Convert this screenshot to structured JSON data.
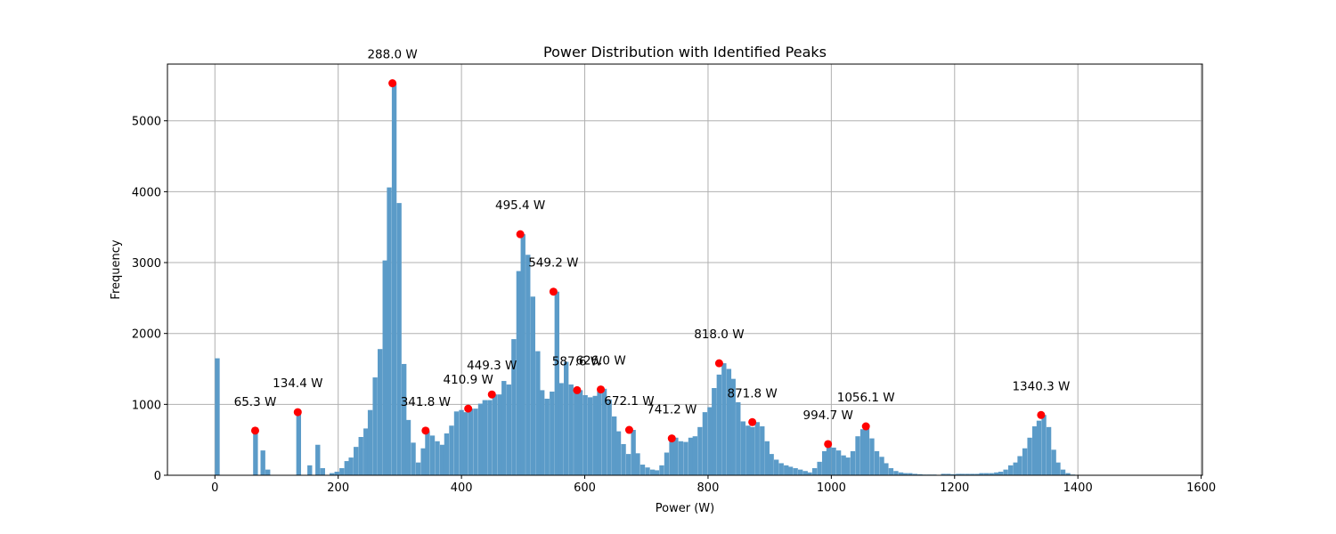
{
  "chart_data": {
    "type": "bar",
    "title": "Power Distribution with Identified Peaks",
    "xlabel": "Power (W)",
    "ylabel": "Frequency",
    "xlim": [
      -77,
      1602
    ],
    "ylim": [
      0,
      5800
    ],
    "xticks": [
      0,
      200,
      400,
      600,
      800,
      1000,
      1200,
      1400,
      1600
    ],
    "yticks": [
      0,
      1000,
      2000,
      3000,
      4000,
      5000
    ],
    "grid": true,
    "bin_width": 7.75,
    "bar_color": "#5b9bc8",
    "peak_color": "#ff0000",
    "bins": [
      [
        0,
        1650
      ],
      [
        62,
        620
      ],
      [
        74,
        350
      ],
      [
        82,
        80
      ],
      [
        132,
        900
      ],
      [
        150,
        140
      ],
      [
        163,
        430
      ],
      [
        171,
        100
      ],
      [
        186,
        30
      ],
      [
        194,
        50
      ],
      [
        202,
        100
      ],
      [
        210,
        200
      ],
      [
        217,
        250
      ],
      [
        225,
        400
      ],
      [
        233,
        540
      ],
      [
        241,
        660
      ],
      [
        248,
        920
      ],
      [
        256,
        1380
      ],
      [
        264,
        1780
      ],
      [
        272,
        3030
      ],
      [
        279,
        4060
      ],
      [
        287,
        5530
      ],
      [
        295,
        3840
      ],
      [
        303,
        1570
      ],
      [
        310,
        780
      ],
      [
        318,
        460
      ],
      [
        326,
        180
      ],
      [
        334,
        380
      ],
      [
        341,
        620
      ],
      [
        349,
        560
      ],
      [
        357,
        480
      ],
      [
        365,
        430
      ],
      [
        372,
        590
      ],
      [
        380,
        700
      ],
      [
        388,
        900
      ],
      [
        396,
        920
      ],
      [
        403,
        890
      ],
      [
        411,
        940
      ],
      [
        419,
        940
      ],
      [
        427,
        1010
      ],
      [
        434,
        1060
      ],
      [
        442,
        1060
      ],
      [
        450,
        1140
      ],
      [
        458,
        1140
      ],
      [
        465,
        1330
      ],
      [
        473,
        1280
      ],
      [
        481,
        1920
      ],
      [
        489,
        2880
      ],
      [
        496,
        3400
      ],
      [
        504,
        3110
      ],
      [
        512,
        2520
      ],
      [
        520,
        1750
      ],
      [
        527,
        1200
      ],
      [
        535,
        1080
      ],
      [
        543,
        1180
      ],
      [
        551,
        2590
      ],
      [
        558,
        1300
      ],
      [
        566,
        1600
      ],
      [
        574,
        1280
      ],
      [
        582,
        1180
      ],
      [
        589,
        1200
      ],
      [
        597,
        1130
      ],
      [
        605,
        1100
      ],
      [
        613,
        1120
      ],
      [
        620,
        1180
      ],
      [
        628,
        1220
      ],
      [
        636,
        1070
      ],
      [
        644,
        830
      ],
      [
        651,
        620
      ],
      [
        659,
        440
      ],
      [
        667,
        300
      ],
      [
        675,
        640
      ],
      [
        682,
        310
      ],
      [
        690,
        150
      ],
      [
        698,
        110
      ],
      [
        706,
        80
      ],
      [
        713,
        70
      ],
      [
        721,
        140
      ],
      [
        729,
        320
      ],
      [
        737,
        500
      ],
      [
        744,
        530
      ],
      [
        752,
        480
      ],
      [
        760,
        470
      ],
      [
        768,
        530
      ],
      [
        775,
        550
      ],
      [
        783,
        680
      ],
      [
        791,
        890
      ],
      [
        799,
        960
      ],
      [
        806,
        1230
      ],
      [
        814,
        1420
      ],
      [
        822,
        1580
      ],
      [
        830,
        1500
      ],
      [
        837,
        1360
      ],
      [
        845,
        1030
      ],
      [
        853,
        760
      ],
      [
        861,
        700
      ],
      [
        868,
        680
      ],
      [
        876,
        750
      ],
      [
        884,
        690
      ],
      [
        892,
        480
      ],
      [
        899,
        300
      ],
      [
        907,
        220
      ],
      [
        915,
        170
      ],
      [
        923,
        140
      ],
      [
        930,
        120
      ],
      [
        938,
        100
      ],
      [
        946,
        80
      ],
      [
        954,
        60
      ],
      [
        961,
        40
      ],
      [
        969,
        100
      ],
      [
        977,
        190
      ],
      [
        985,
        340
      ],
      [
        992,
        440
      ],
      [
        1000,
        390
      ],
      [
        1008,
        350
      ],
      [
        1016,
        280
      ],
      [
        1023,
        250
      ],
      [
        1031,
        340
      ],
      [
        1039,
        550
      ],
      [
        1047,
        650
      ],
      [
        1054,
        690
      ],
      [
        1062,
        520
      ],
      [
        1070,
        340
      ],
      [
        1078,
        260
      ],
      [
        1085,
        170
      ],
      [
        1093,
        100
      ],
      [
        1101,
        60
      ],
      [
        1109,
        40
      ],
      [
        1116,
        30
      ],
      [
        1124,
        30
      ],
      [
        1132,
        20
      ],
      [
        1140,
        15
      ],
      [
        1147,
        10
      ],
      [
        1155,
        10
      ],
      [
        1163,
        10
      ],
      [
        1171,
        5
      ],
      [
        1178,
        20
      ],
      [
        1186,
        20
      ],
      [
        1194,
        15
      ],
      [
        1202,
        20
      ],
      [
        1209,
        20
      ],
      [
        1217,
        20
      ],
      [
        1225,
        20
      ],
      [
        1233,
        20
      ],
      [
        1240,
        30
      ],
      [
        1248,
        30
      ],
      [
        1256,
        30
      ],
      [
        1264,
        40
      ],
      [
        1271,
        50
      ],
      [
        1279,
        80
      ],
      [
        1287,
        140
      ],
      [
        1295,
        180
      ],
      [
        1302,
        270
      ],
      [
        1310,
        380
      ],
      [
        1318,
        530
      ],
      [
        1326,
        690
      ],
      [
        1333,
        770
      ],
      [
        1341,
        850
      ],
      [
        1349,
        680
      ],
      [
        1357,
        360
      ],
      [
        1364,
        180
      ],
      [
        1372,
        80
      ],
      [
        1380,
        30
      ],
      [
        1388,
        10
      ],
      [
        1395,
        5
      ],
      [
        1403,
        5
      ],
      [
        1411,
        5
      ],
      [
        1419,
        5
      ],
      [
        1426,
        5
      ],
      [
        1434,
        5
      ],
      [
        1442,
        5
      ],
      [
        1450,
        5
      ],
      [
        1457,
        5
      ],
      [
        1465,
        5
      ],
      [
        1473,
        5
      ],
      [
        1481,
        5
      ],
      [
        1488,
        5
      ],
      [
        1496,
        5
      ],
      [
        1504,
        5
      ],
      [
        1512,
        5
      ],
      [
        1519,
        5
      ],
      [
        1527,
        5
      ],
      [
        1535,
        5
      ],
      [
        1543,
        5
      ]
    ],
    "peaks": [
      {
        "x": 65.3,
        "y": 630,
        "label": "65.3 W"
      },
      {
        "x": 134.4,
        "y": 890,
        "label": "134.4 W"
      },
      {
        "x": 288.0,
        "y": 5530,
        "label": "288.0 W"
      },
      {
        "x": 341.8,
        "y": 630,
        "label": "341.8 W"
      },
      {
        "x": 410.9,
        "y": 940,
        "label": "410.9 W"
      },
      {
        "x": 449.3,
        "y": 1140,
        "label": "449.3 W"
      },
      {
        "x": 495.4,
        "y": 3400,
        "label": "495.4 W"
      },
      {
        "x": 549.2,
        "y": 2590,
        "label": "549.2 W"
      },
      {
        "x": 587.6,
        "y": 1200,
        "label": "587.6 W"
      },
      {
        "x": 626.0,
        "y": 1210,
        "label": "626.0 W"
      },
      {
        "x": 672.1,
        "y": 640,
        "label": "672.1 W"
      },
      {
        "x": 741.2,
        "y": 520,
        "label": "741.2 W"
      },
      {
        "x": 818.0,
        "y": 1580,
        "label": "818.0 W"
      },
      {
        "x": 871.8,
        "y": 750,
        "label": "871.8 W"
      },
      {
        "x": 994.7,
        "y": 440,
        "label": "994.7 W"
      },
      {
        "x": 1056.1,
        "y": 690,
        "label": "1056.1 W"
      },
      {
        "x": 1340.3,
        "y": 850,
        "label": "1340.3 W"
      }
    ]
  }
}
